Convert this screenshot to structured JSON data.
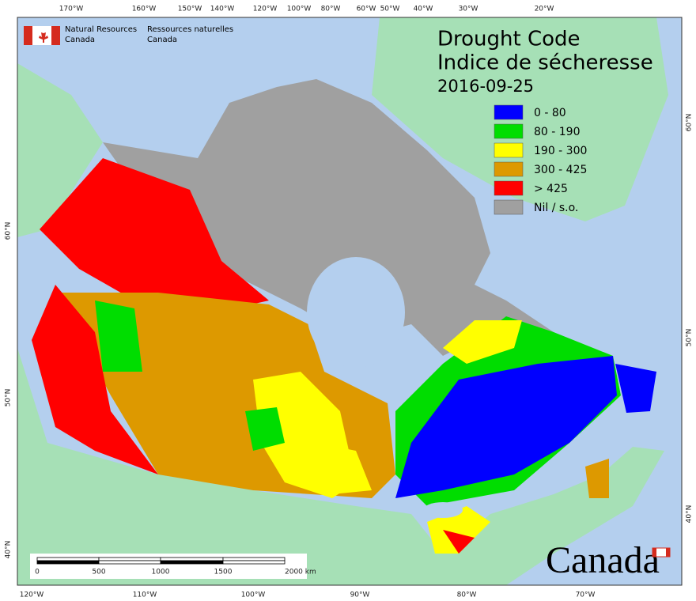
{
  "header": {
    "agency_en": [
      "Natural Resources",
      "Canada"
    ],
    "agency_fr": [
      "Ressources naturelles",
      "Canada"
    ]
  },
  "title": {
    "line1": "Drought Code",
    "line2": "Indice de sécheresse",
    "date": "2016-09-25"
  },
  "legend": [
    {
      "label": "0 - 80",
      "color": "#0000ff"
    },
    {
      "label": "80 - 190",
      "color": "#00dd00"
    },
    {
      "label": "190 - 300",
      "color": "#ffff00"
    },
    {
      "label": "300 - 425",
      "color": "#dd9900"
    },
    {
      "label": "> 425",
      "color": "#ff0000"
    },
    {
      "label": "Nil / s.o.",
      "color": "#a0a0a0"
    }
  ],
  "graticule": {
    "top": [
      "170°W",
      "160°W",
      "150°W",
      "140°W",
      "120°W",
      "100°W",
      "80°W",
      "60°W",
      "50°W",
      "40°W",
      "30°W",
      "20°W"
    ],
    "bottom": [
      "120°W",
      "110°W",
      "100°W",
      "90°W",
      "80°W",
      "70°W"
    ],
    "left": [
      "60°N",
      "50°N",
      "40°N"
    ],
    "right": [
      "60°N",
      "50°N",
      "40°N"
    ]
  },
  "scale_bar": {
    "labels": [
      "0",
      "500",
      "1000",
      "1500",
      "2000 km"
    ]
  },
  "wordmark": "Canada"
}
